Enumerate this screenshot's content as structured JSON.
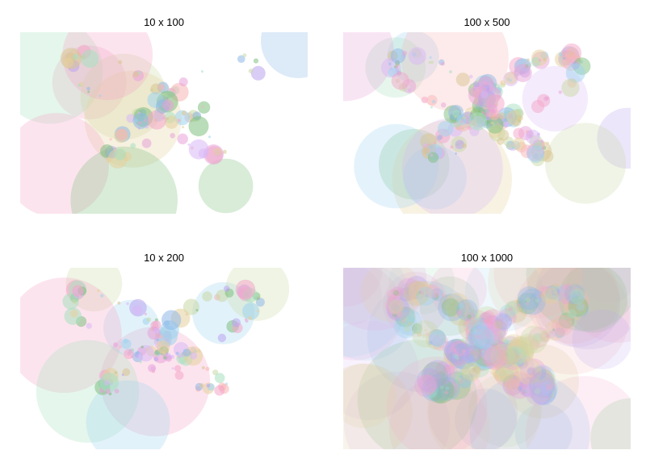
{
  "chart_data": [
    {
      "type": "scatter",
      "title": "10 x 100",
      "xlabel": "",
      "ylabel": "",
      "grid": false,
      "axes_visible": false,
      "description_marks": "translucent bubbles in random pastel colors arranged around a butterfly-shaped point cloud",
      "series_count": 10,
      "points_per_series": 100
    },
    {
      "type": "scatter",
      "title": "100 x 500",
      "xlabel": "",
      "ylabel": "",
      "grid": false,
      "axes_visible": false,
      "series_count": 100,
      "points_per_series": 500
    },
    {
      "type": "scatter",
      "title": "10 x 200",
      "xlabel": "",
      "ylabel": "",
      "grid": false,
      "axes_visible": false,
      "series_count": 10,
      "points_per_series": 200
    },
    {
      "type": "scatter",
      "title": "100 x 1000",
      "xlabel": "",
      "ylabel": "",
      "grid": false,
      "axes_visible": false,
      "series_count": 100,
      "points_per_series": 1000
    }
  ],
  "colors": [
    "#f4a6c8",
    "#b9a4ef",
    "#9fd3ef",
    "#a8e0c0",
    "#e6cf9c",
    "#f7b5b5",
    "#d9b8f5",
    "#c9d9a6",
    "#7fbf7f",
    "#8fb8e8",
    "#e7a3d8",
    "#d8c48f"
  ]
}
